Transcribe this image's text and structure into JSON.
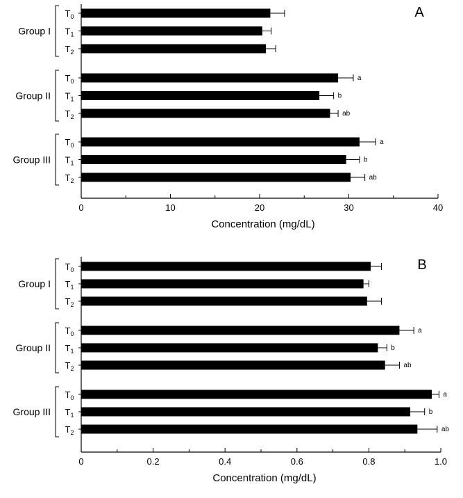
{
  "chart_data": [
    {
      "type": "bar",
      "orientation": "horizontal",
      "panel_label": "A",
      "xlabel": "Concentration (mg/dL)",
      "xlim": [
        0,
        40
      ],
      "ticks": [
        0,
        10,
        20,
        30,
        40
      ],
      "tick_labels": [
        "0",
        "10",
        "20",
        "30",
        "40"
      ],
      "grid": false,
      "groups": [
        {
          "label": "Group I",
          "bars": [
            {
              "time": "T",
              "sub": "0",
              "value": 21.2,
              "error": 1.6,
              "sig": ""
            },
            {
              "time": "T",
              "sub": "1",
              "value": 20.3,
              "error": 1.0,
              "sig": ""
            },
            {
              "time": "T",
              "sub": "2",
              "value": 20.7,
              "error": 1.1,
              "sig": ""
            }
          ]
        },
        {
          "label": "Group II",
          "bars": [
            {
              "time": "T",
              "sub": "0",
              "value": 28.8,
              "error": 1.7,
              "sig": "a"
            },
            {
              "time": "T",
              "sub": "1",
              "value": 26.7,
              "error": 1.6,
              "sig": "b"
            },
            {
              "time": "T",
              "sub": "2",
              "value": 27.9,
              "error": 0.9,
              "sig": "ab"
            }
          ]
        },
        {
          "label": "Group III",
          "bars": [
            {
              "time": "T",
              "sub": "0",
              "value": 31.2,
              "error": 1.8,
              "sig": "a"
            },
            {
              "time": "T",
              "sub": "1",
              "value": 29.7,
              "error": 1.5,
              "sig": "b"
            },
            {
              "time": "T",
              "sub": "2",
              "value": 30.2,
              "error": 1.6,
              "sig": "ab"
            }
          ]
        }
      ]
    },
    {
      "type": "bar",
      "orientation": "horizontal",
      "panel_label": "B",
      "xlabel": "Concentration (mg/dL)",
      "xlim": [
        0,
        1.0
      ],
      "ticks": [
        0,
        0.2,
        0.4,
        0.6,
        0.8,
        1.0
      ],
      "tick_labels": [
        "0",
        "0.2",
        "0.4",
        "0.6",
        "0.8",
        "1.0"
      ],
      "grid": false,
      "groups": [
        {
          "label": "Group I",
          "bars": [
            {
              "time": "T",
              "sub": "0",
              "value": 0.805,
              "error": 0.03,
              "sig": ""
            },
            {
              "time": "T",
              "sub": "1",
              "value": 0.785,
              "error": 0.015,
              "sig": ""
            },
            {
              "time": "T",
              "sub": "2",
              "value": 0.795,
              "error": 0.04,
              "sig": ""
            }
          ]
        },
        {
          "label": "Group II",
          "bars": [
            {
              "time": "T",
              "sub": "0",
              "value": 0.885,
              "error": 0.04,
              "sig": "a"
            },
            {
              "time": "T",
              "sub": "1",
              "value": 0.825,
              "error": 0.025,
              "sig": "b"
            },
            {
              "time": "T",
              "sub": "2",
              "value": 0.845,
              "error": 0.04,
              "sig": "ab"
            }
          ]
        },
        {
          "label": "Group III",
          "bars": [
            {
              "time": "T",
              "sub": "0",
              "value": 0.975,
              "error": 0.02,
              "sig": "a"
            },
            {
              "time": "T",
              "sub": "1",
              "value": 0.915,
              "error": 0.04,
              "sig": "b"
            },
            {
              "time": "T",
              "sub": "2",
              "value": 0.935,
              "error": 0.055,
              "sig": "ab"
            }
          ]
        }
      ]
    }
  ]
}
